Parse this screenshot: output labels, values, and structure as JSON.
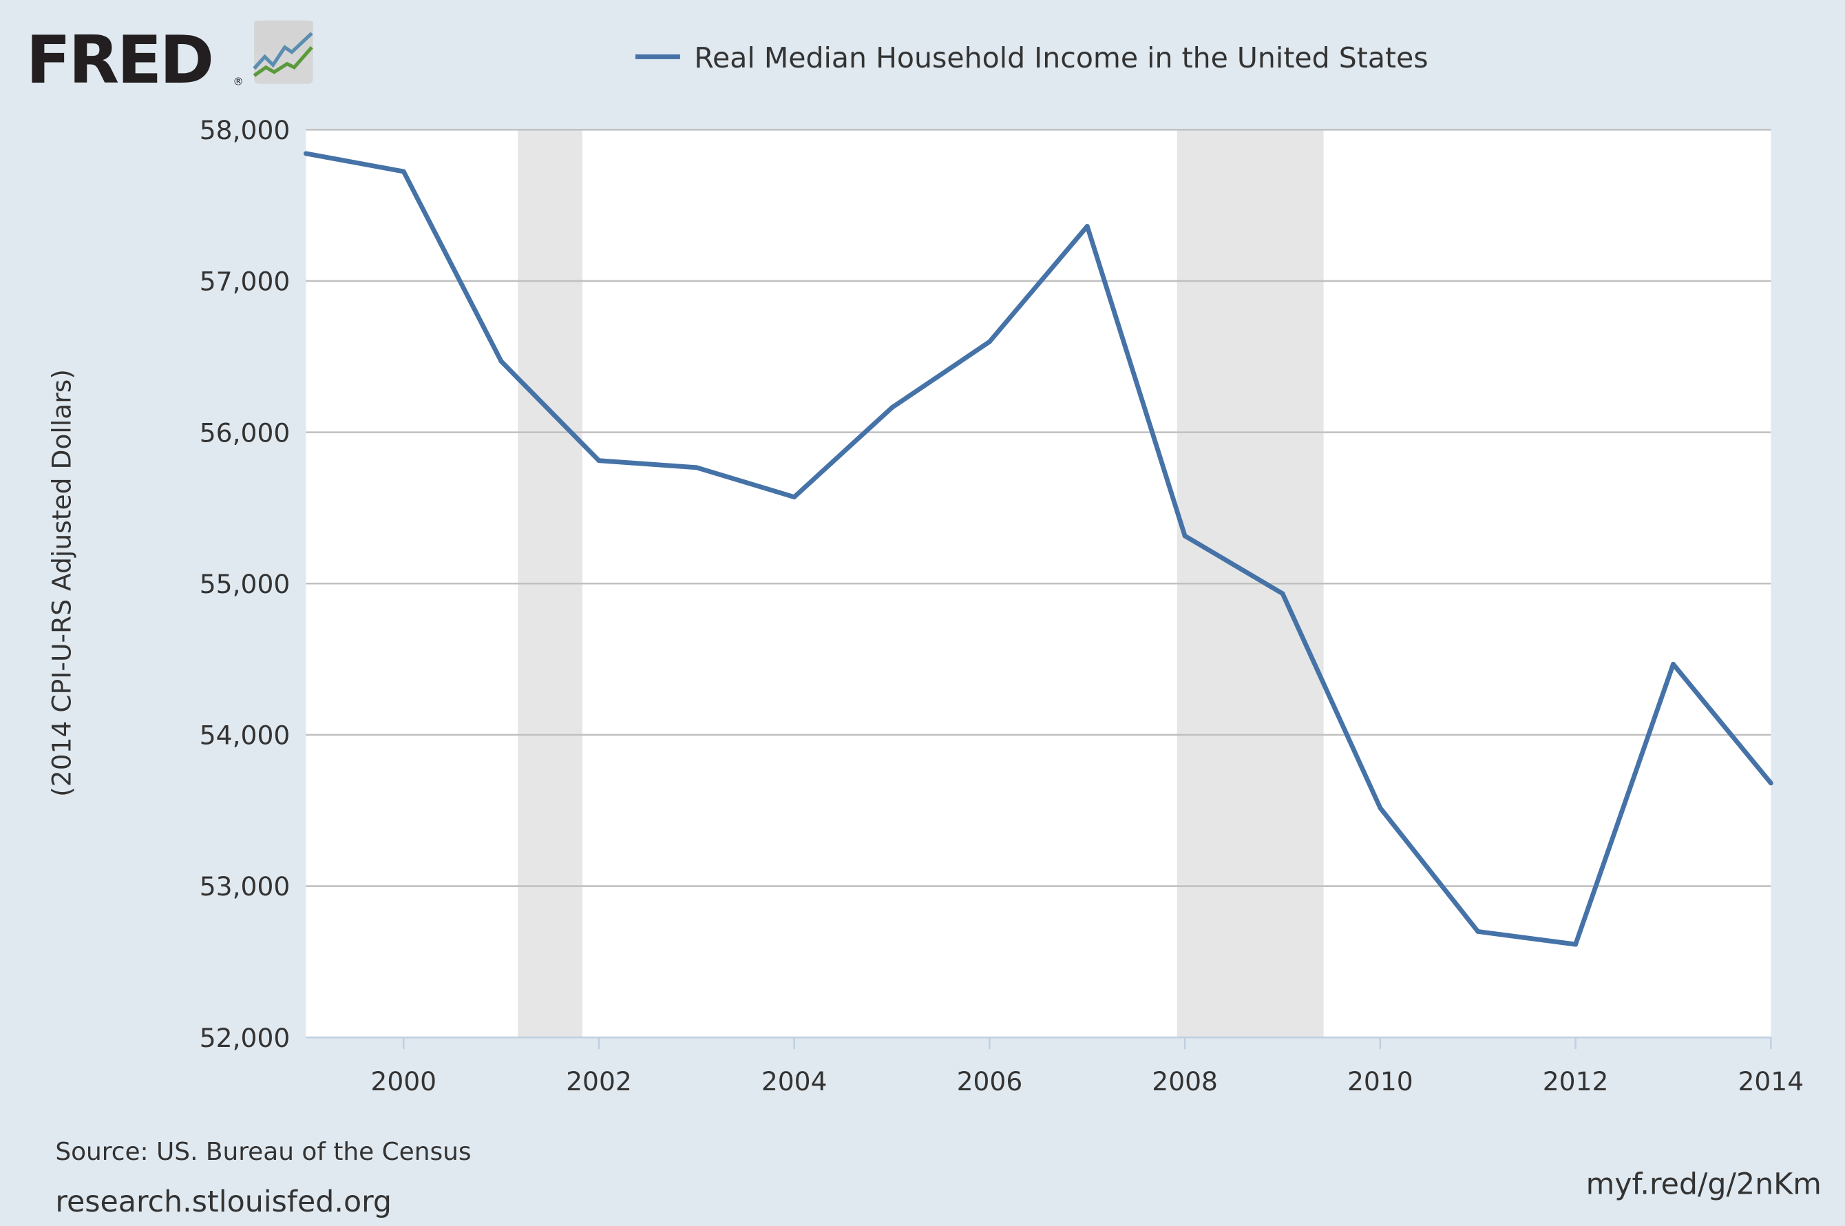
{
  "logo": {
    "text": "FRED",
    "registered": "®"
  },
  "footer": {
    "source": "Source: US. Bureau of the Census",
    "site": "research.stlouisfed.org",
    "short_url": "myf.red/g/2nKm"
  },
  "colors": {
    "series": "#4572a7",
    "background": "#e1e9f0",
    "recession": "#e6e6e6",
    "grid": "#c0c0c0"
  },
  "chart_data": {
    "type": "line",
    "title": "",
    "xlabel": "",
    "ylabel": "(2014 CPI-U-RS Adjusted Dollars)",
    "legend_position": "top-center",
    "grid": true,
    "xlim": [
      1999,
      2014
    ],
    "ylim": [
      52000,
      58000
    ],
    "x_ticks": [
      2000,
      2002,
      2004,
      2006,
      2008,
      2010,
      2012,
      2014
    ],
    "x_tick_labels": [
      "2000",
      "2002",
      "2004",
      "2006",
      "2008",
      "2010",
      "2012",
      "2014"
    ],
    "y_ticks": [
      52000,
      53000,
      54000,
      55000,
      56000,
      57000,
      58000
    ],
    "y_tick_labels": [
      "52,000",
      "53,000",
      "54,000",
      "55,000",
      "56,000",
      "57,000",
      "58,000"
    ],
    "recessions": [
      [
        2001.17,
        2001.83
      ],
      [
        2007.92,
        2009.42
      ]
    ],
    "series": [
      {
        "name": "Real Median Household Income in the United States",
        "x": [
          1999,
          2000,
          2001,
          2002,
          2003,
          2004,
          2005,
          2006,
          2007,
          2008,
          2009,
          2010,
          2011,
          2012,
          2013,
          2014
        ],
        "values": [
          57843,
          57724,
          56469,
          55813,
          55767,
          55572,
          56163,
          56599,
          57362,
          55315,
          54934,
          53517,
          52700,
          52615,
          54467,
          53681
        ]
      }
    ]
  }
}
